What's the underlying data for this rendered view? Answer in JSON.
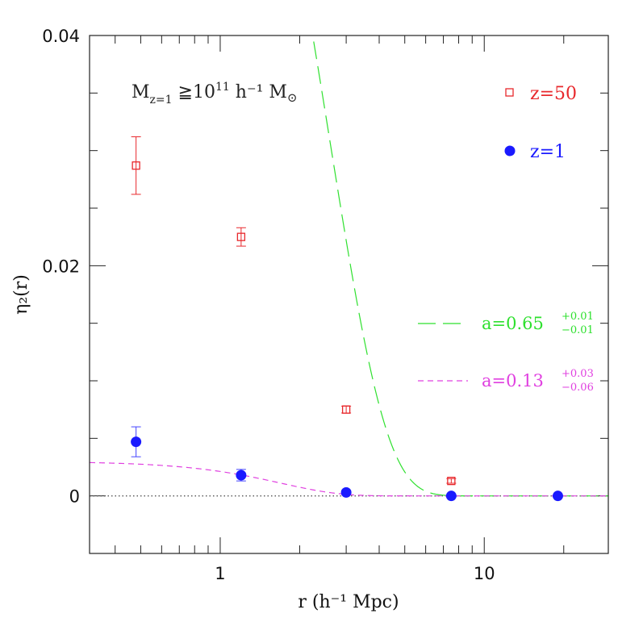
{
  "chart_data": {
    "type": "scatter",
    "xscale": "log",
    "xlim": [
      0.32,
      29.5
    ],
    "ylim": [
      -0.005,
      0.04
    ],
    "xlabel": "r (h⁻¹ Mpc)",
    "ylabel": "η₂(r)",
    "annotation": {
      "main": "M",
      "sub": "z=1",
      "rest": " ≧10",
      "sup": "11",
      "tail": " h⁻¹ M",
      "sym": "⊙"
    },
    "xticks": [
      {
        "value": 1,
        "label": "1"
      },
      {
        "value": 10,
        "label": "10"
      }
    ],
    "yticks": [
      {
        "value": 0,
        "label": "0"
      },
      {
        "value": 0.02,
        "label": "0.02"
      },
      {
        "value": 0.04,
        "label": "0.04"
      }
    ],
    "zero_line": true,
    "grid": false,
    "legend_position": "right",
    "series": [
      {
        "name": "z=50",
        "kind": "points",
        "marker": "open-square",
        "color": "#e8282c",
        "points": [
          {
            "x": 0.48,
            "y": 0.0287,
            "err": 0.0025
          },
          {
            "x": 1.2,
            "y": 0.0225,
            "err": 0.0008
          },
          {
            "x": 3.0,
            "y": 0.0075,
            "err": 0.0003
          },
          {
            "x": 7.5,
            "y": 0.0013,
            "err": 0.0002
          }
        ]
      },
      {
        "name": "z=1",
        "kind": "points",
        "marker": "filled-circle",
        "color": "#1a1aff",
        "errcolor": "#4444ff",
        "points": [
          {
            "x": 0.48,
            "y": 0.0047,
            "err": 0.0013
          },
          {
            "x": 1.2,
            "y": 0.0018,
            "err": 0.0005
          },
          {
            "x": 3.0,
            "y": 0.0003,
            "err": 0.0001
          },
          {
            "x": 7.5,
            "y": 0.0,
            "err": 0.0
          },
          {
            "x": 19.0,
            "y": 0.0,
            "err": 0.0
          }
        ]
      }
    ],
    "fits": [
      {
        "name": "a=0.65",
        "label_main": "a=0.65",
        "label_up": "+0.01",
        "label_down": "−0.01",
        "style": "long-dash",
        "color": "#2ee02e",
        "amplitude": 0.084,
        "scale": 2.6
      },
      {
        "name": "a=0.13",
        "label_main": "a=0.13",
        "label_up": "+0.03",
        "label_down": "−0.06",
        "style": "short-dash",
        "color": "#e040e0",
        "amplitude": 0.003,
        "scale": 1.7
      }
    ]
  }
}
